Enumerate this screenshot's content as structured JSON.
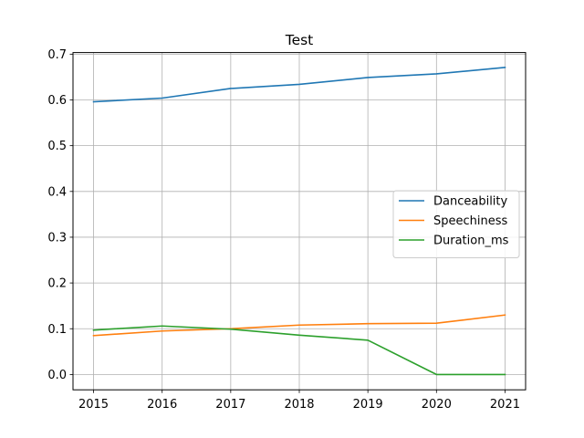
{
  "chart_data": {
    "type": "line",
    "title": "Test",
    "xlabel": "",
    "ylabel": "",
    "x": [
      2015,
      2016,
      2017,
      2018,
      2019,
      2020,
      2021
    ],
    "xlim": [
      2014.7,
      2021.3
    ],
    "ylim": [
      -0.0335,
      0.7035
    ],
    "xticks": [
      "2015",
      "2016",
      "2017",
      "2018",
      "2019",
      "2020",
      "2021"
    ],
    "yticks": [
      "0.0",
      "0.1",
      "0.2",
      "0.3",
      "0.4",
      "0.5",
      "0.6",
      "0.7"
    ],
    "grid": true,
    "legend_position": "center-right",
    "series": [
      {
        "name": "Danceability",
        "color": "#1f77b4",
        "values": [
          0.596,
          0.604,
          0.625,
          0.634,
          0.649,
          0.657,
          0.671
        ]
      },
      {
        "name": "Speechiness",
        "color": "#ff7f0e",
        "values": [
          0.085,
          0.095,
          0.1,
          0.108,
          0.111,
          0.112,
          0.13
        ]
      },
      {
        "name": "Duration_ms",
        "color": "#2ca02c",
        "values": [
          0.097,
          0.106,
          0.099,
          0.086,
          0.075,
          0.0,
          0.0
        ]
      }
    ]
  }
}
